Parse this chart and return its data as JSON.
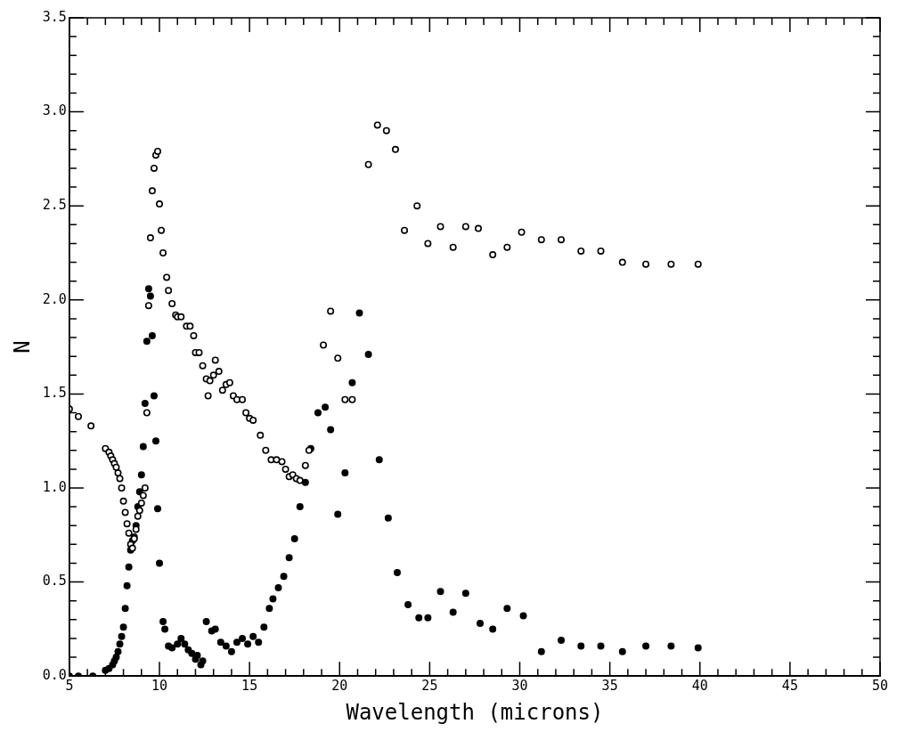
{
  "chart_data": {
    "type": "scatter",
    "xlabel": "Wavelength (microns)",
    "ylabel": "N",
    "marker": "circle",
    "grid": false,
    "legend": false,
    "xlim": [
      5,
      50
    ],
    "ylim": [
      0,
      3.5
    ],
    "xticks": [
      5,
      {
        "value": 6,
        "label": null
      },
      {
        "value": 7,
        "label": null
      },
      {
        "value": 8,
        "label": null
      },
      {
        "value": 9,
        "label": null
      },
      10,
      {
        "value": 11,
        "label": null
      },
      {
        "value": 12,
        "label": null
      },
      {
        "value": 13,
        "label": null
      },
      {
        "value": 14,
        "label": null
      },
      15,
      {
        "value": 16,
        "label": null
      },
      {
        "value": 17,
        "label": null
      },
      {
        "value": 18,
        "label": null
      },
      {
        "value": 19,
        "label": null
      },
      20,
      {
        "value": 21,
        "label": null
      },
      {
        "value": 22,
        "label": null
      },
      {
        "value": 23,
        "label": null
      },
      {
        "value": 24,
        "label": null
      },
      25,
      {
        "value": 26,
        "label": null
      },
      {
        "value": 27,
        "label": null
      },
      {
        "value": 28,
        "label": null
      },
      {
        "value": 29,
        "label": null
      },
      30,
      {
        "value": 31,
        "label": null
      },
      {
        "value": 32,
        "label": null
      },
      {
        "value": 33,
        "label": null
      },
      {
        "value": 34,
        "label": null
      },
      35,
      {
        "value": 36,
        "label": null
      },
      {
        "value": 37,
        "label": null
      },
      {
        "value": 38,
        "label": null
      },
      {
        "value": 39,
        "label": null
      },
      40,
      {
        "value": 41,
        "label": null
      },
      {
        "value": 42,
        "label": null
      },
      {
        "value": 43,
        "label": null
      },
      {
        "value": 44,
        "label": null
      },
      45,
      {
        "value": 46,
        "label": null
      },
      {
        "value": 47,
        "label": null
      },
      {
        "value": 48,
        "label": null
      },
      {
        "value": 49,
        "label": null
      },
      50
    ],
    "yticks": [
      {
        "value": 0,
        "label": "0.0"
      },
      {
        "value": 0.1,
        "label": null
      },
      {
        "value": 0.2,
        "label": null
      },
      {
        "value": 0.3,
        "label": null
      },
      {
        "value": 0.4,
        "label": null
      },
      0.5,
      {
        "value": 0.6,
        "label": null
      },
      {
        "value": 0.7,
        "label": null
      },
      {
        "value": 0.8,
        "label": null
      },
      {
        "value": 0.9,
        "label": null
      },
      {
        "value": 1,
        "label": "1.0"
      },
      {
        "value": 1.1,
        "label": null
      },
      {
        "value": 1.2,
        "label": null
      },
      {
        "value": 1.3,
        "label": null
      },
      {
        "value": 1.4,
        "label": null
      },
      1.5,
      {
        "value": 1.6,
        "label": null
      },
      {
        "value": 1.7,
        "label": null
      },
      {
        "value": 1.8,
        "label": null
      },
      {
        "value": 1.9,
        "label": null
      },
      {
        "value": 2,
        "label": "2.0"
      },
      {
        "value": 2.1,
        "label": null
      },
      {
        "value": 2.2,
        "label": null
      },
      {
        "value": 2.3,
        "label": null
      },
      {
        "value": 2.4,
        "label": null
      },
      2.5,
      {
        "value": 2.6,
        "label": null
      },
      {
        "value": 2.7,
        "label": null
      },
      {
        "value": 2.8,
        "label": null
      },
      {
        "value": 2.9,
        "label": null
      },
      {
        "value": 3,
        "label": "3.0"
      },
      {
        "value": 3.1,
        "label": null
      },
      {
        "value": 3.2,
        "label": null
      },
      {
        "value": 3.3,
        "label": null
      },
      {
        "value": 3.4,
        "label": null
      },
      3.5
    ],
    "series": [
      {
        "color": "#000000",
        "x": [
          5.0,
          5.5,
          6.2,
          7.0,
          7.2,
          7.3,
          7.4,
          7.5,
          7.6,
          7.7,
          7.8,
          7.9,
          8.0,
          8.1,
          8.2,
          8.3,
          8.4,
          8.5,
          8.6,
          8.7,
          8.8,
          8.9,
          9.0,
          9.1,
          9.2,
          9.3,
          9.4,
          9.5,
          9.6,
          9.7,
          9.8,
          9.9,
          10.0,
          10.1,
          10.2,
          10.4,
          10.5,
          10.7,
          10.9,
          11.0,
          11.2,
          11.5,
          11.7,
          11.9,
          12.0,
          12.2,
          12.4,
          12.6,
          12.7,
          12.8,
          13.0,
          13.1,
          13.3,
          13.5,
          13.7,
          13.9,
          14.1,
          14.3,
          14.6,
          14.8,
          15.0,
          15.2,
          15.6,
          15.9,
          16.2,
          16.5,
          16.8,
          17.0,
          17.2,
          17.4,
          17.6,
          17.8,
          18.1,
          18.3,
          19.1,
          19.5,
          19.9,
          20.3,
          20.7,
          21.6,
          22.1,
          22.6,
          23.1,
          23.6,
          24.3,
          24.9,
          25.6,
          26.3,
          27.0,
          27.7,
          28.5,
          29.3,
          30.1,
          31.2,
          32.3,
          33.4,
          34.5,
          35.7,
          37.0,
          38.4,
          39.9
        ],
        "values": [
          1.42,
          1.38,
          1.33,
          1.21,
          1.19,
          1.17,
          1.15,
          1.13,
          1.11,
          1.08,
          1.05,
          1.0,
          0.93,
          0.87,
          0.81,
          0.76,
          0.7,
          0.68,
          0.73,
          0.78,
          0.85,
          0.88,
          0.92,
          0.96,
          1.0,
          1.4,
          1.97,
          2.33,
          2.58,
          2.7,
          2.77,
          2.79,
          2.51,
          2.37,
          2.25,
          2.12,
          2.05,
          1.98,
          1.92,
          1.91,
          1.91,
          1.86,
          1.86,
          1.81,
          1.72,
          1.72,
          1.65,
          1.58,
          1.49,
          1.57,
          1.6,
          1.68,
          1.62,
          1.52,
          1.55,
          1.56,
          1.49,
          1.47,
          1.47,
          1.4,
          1.37,
          1.36,
          1.28,
          1.2,
          1.15,
          1.15,
          1.14,
          1.1,
          1.06,
          1.07,
          1.05,
          1.04,
          1.12,
          1.2,
          1.76,
          1.94,
          1.69,
          1.47,
          1.47,
          2.72,
          2.93,
          2.9,
          2.8,
          2.37,
          2.5,
          2.3,
          2.39,
          2.28,
          2.39,
          2.38,
          2.24,
          2.28,
          2.36,
          2.32,
          2.32,
          2.26,
          2.26,
          2.2,
          2.19,
          2.19,
          2.19
        ]
      },
      {
        "color": "#000000",
        "x": [
          5.0,
          5.5,
          6.3,
          7.0,
          7.2,
          7.4,
          7.5,
          7.6,
          7.7,
          7.8,
          7.9,
          8.0,
          8.1,
          8.2,
          8.3,
          8.4,
          8.5,
          8.6,
          8.7,
          8.8,
          8.9,
          9.0,
          9.1,
          9.2,
          9.3,
          9.4,
          9.5,
          9.6,
          9.7,
          9.8,
          9.9,
          10.0,
          10.2,
          10.3,
          10.5,
          10.7,
          11.0,
          11.2,
          11.4,
          11.6,
          11.8,
          12.0,
          12.1,
          12.3,
          12.4,
          12.6,
          12.9,
          13.1,
          13.4,
          13.7,
          14.0,
          14.3,
          14.6,
          14.9,
          15.2,
          15.5,
          15.8,
          16.1,
          16.3,
          16.6,
          16.9,
          17.2,
          17.5,
          17.8,
          18.1,
          18.4,
          18.8,
          19.2,
          19.5,
          19.9,
          20.3,
          20.7,
          21.1,
          21.6,
          22.2,
          22.7,
          23.2,
          23.8,
          24.4,
          24.9,
          25.6,
          26.3,
          27.0,
          27.8,
          28.5,
          29.3,
          30.2,
          31.2,
          32.3,
          33.4,
          34.5,
          35.7,
          37.0,
          38.4,
          39.9
        ],
        "values": [
          0.0,
          0.0,
          0.0,
          0.03,
          0.04,
          0.06,
          0.08,
          0.1,
          0.13,
          0.17,
          0.21,
          0.26,
          0.36,
          0.48,
          0.58,
          0.67,
          0.72,
          0.74,
          0.8,
          0.9,
          0.98,
          1.07,
          1.22,
          1.45,
          1.78,
          2.06,
          2.02,
          1.81,
          1.49,
          1.25,
          0.89,
          0.6,
          0.29,
          0.25,
          0.16,
          0.15,
          0.17,
          0.2,
          0.17,
          0.14,
          0.12,
          0.09,
          0.11,
          0.06,
          0.08,
          0.29,
          0.24,
          0.25,
          0.18,
          0.16,
          0.13,
          0.18,
          0.2,
          0.17,
          0.21,
          0.18,
          0.26,
          0.36,
          0.41,
          0.47,
          0.53,
          0.63,
          0.73,
          0.9,
          1.03,
          1.21,
          1.4,
          1.43,
          1.31,
          0.86,
          1.08,
          1.56,
          1.93,
          1.71,
          1.15,
          0.84,
          0.55,
          0.38,
          0.31,
          0.31,
          0.45,
          0.34,
          0.44,
          0.28,
          0.25,
          0.36,
          0.32,
          0.13,
          0.19,
          0.16,
          0.16,
          0.13,
          0.16,
          0.16,
          0.15
        ]
      }
    ]
  }
}
